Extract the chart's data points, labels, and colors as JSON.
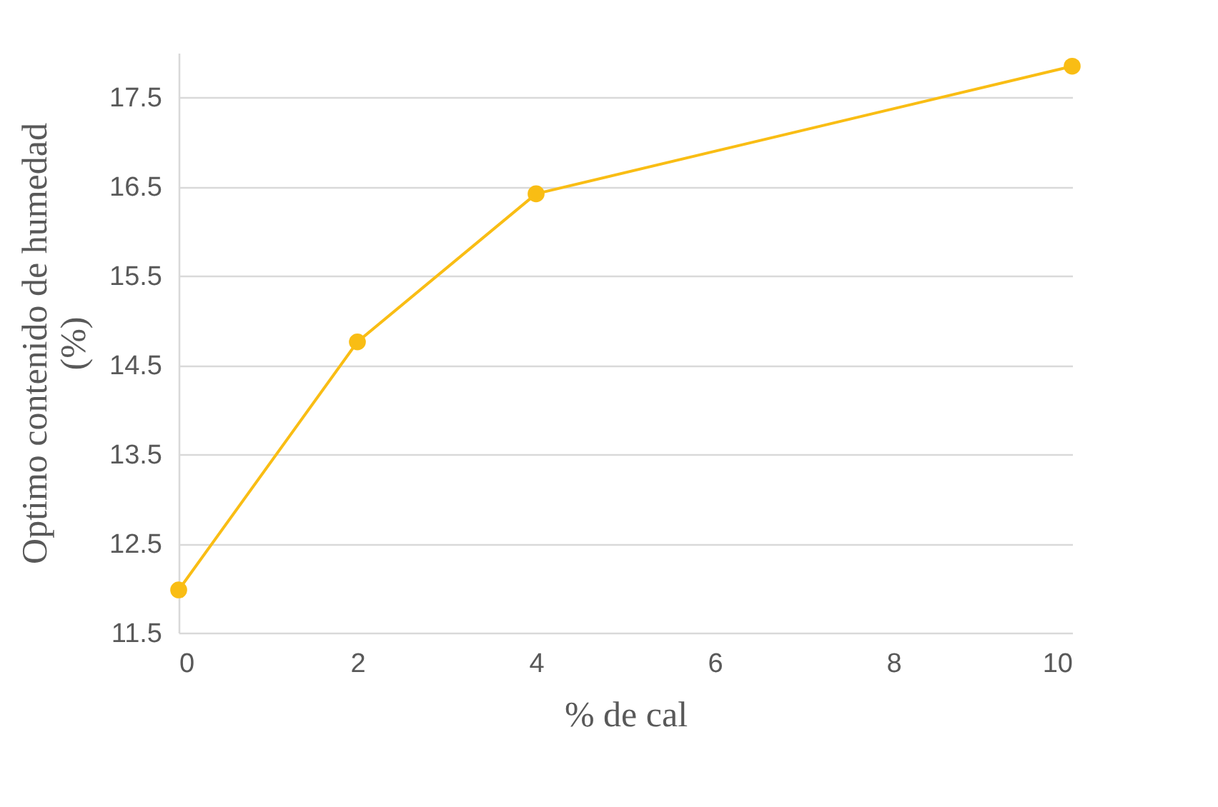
{
  "chart_data": {
    "type": "line",
    "xlabel": "% de cal",
    "ylabel": "Optimo contenido de humedad (%)",
    "x": [
      0,
      2,
      4,
      10
    ],
    "series": [
      {
        "color": "#f9bd14",
        "values": [
          11.98,
          14.76,
          16.42,
          17.85
        ]
      }
    ],
    "xlim": [
      0,
      10
    ],
    "xticks": [
      0,
      2,
      4,
      6,
      8,
      10
    ],
    "ylim": [
      11.5,
      18
    ],
    "yticks": [
      11.5,
      12.5,
      13.5,
      14.5,
      15.5,
      16.5,
      17.5
    ],
    "grid": "y",
    "marker": "circle",
    "line_style": "solid",
    "legend": false
  }
}
